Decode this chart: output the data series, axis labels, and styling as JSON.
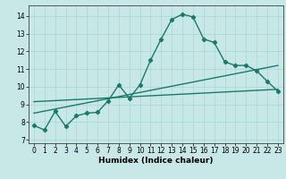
{
  "title": "",
  "xlabel": "Humidex (Indice chaleur)",
  "bg_color": "#c8e8e8",
  "grid_color": "#b0d8d8",
  "line_color": "#1a7a6a",
  "xlim": [
    -0.5,
    23.5
  ],
  "ylim": [
    6.8,
    14.6
  ],
  "yticks": [
    7,
    8,
    9,
    10,
    11,
    12,
    13,
    14
  ],
  "xticks": [
    0,
    1,
    2,
    3,
    4,
    5,
    6,
    7,
    8,
    9,
    10,
    11,
    12,
    13,
    14,
    15,
    16,
    17,
    18,
    19,
    20,
    21,
    22,
    23
  ],
  "curve1_x": [
    0,
    1,
    2,
    3,
    4,
    5,
    6,
    7,
    8,
    9,
    10,
    11,
    12,
    13,
    14,
    15,
    16,
    17,
    18,
    19,
    20,
    21,
    22,
    23
  ],
  "curve1_y": [
    7.8,
    7.55,
    8.6,
    7.75,
    8.35,
    8.5,
    8.55,
    9.2,
    10.1,
    9.35,
    10.1,
    11.5,
    12.7,
    13.8,
    14.1,
    13.95,
    12.7,
    12.5,
    11.4,
    11.2,
    11.2,
    10.9,
    10.3,
    9.75
  ],
  "line1_x": [
    0,
    23
  ],
  "line1_y": [
    8.5,
    11.2
  ],
  "line2_x": [
    0,
    23
  ],
  "line2_y": [
    9.15,
    9.85
  ],
  "marker": "D",
  "markersize": 2.2,
  "linewidth": 1.0,
  "tick_fontsize": 5.5,
  "xlabel_fontsize": 6.5
}
